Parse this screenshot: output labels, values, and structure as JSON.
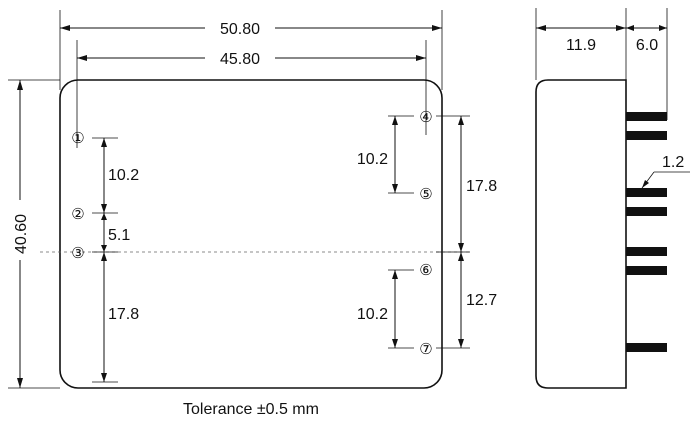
{
  "dimensions": {
    "overall_width": "50.80",
    "pin_span_width": "45.80",
    "height": "40.60",
    "pin1_to_pin2": "10.2",
    "pin2_to_pin3": "5.1",
    "pin3_to_bottom": "17.8",
    "pin4_to_pin5": "10.2",
    "pin4_to_center": "17.8",
    "pin6_to_pin7": "10.2",
    "center_to_pin7": "12.7",
    "side_body_depth": "11.9",
    "side_pin_length": "6.0",
    "pin_diameter": "1.2"
  },
  "pins": {
    "p1": "①",
    "p2": "②",
    "p3": "③",
    "p4": "④",
    "p5": "⑤",
    "p6": "⑥",
    "p7": "⑦"
  },
  "footer": {
    "tolerance": "Tolerance ±0.5 mm"
  }
}
